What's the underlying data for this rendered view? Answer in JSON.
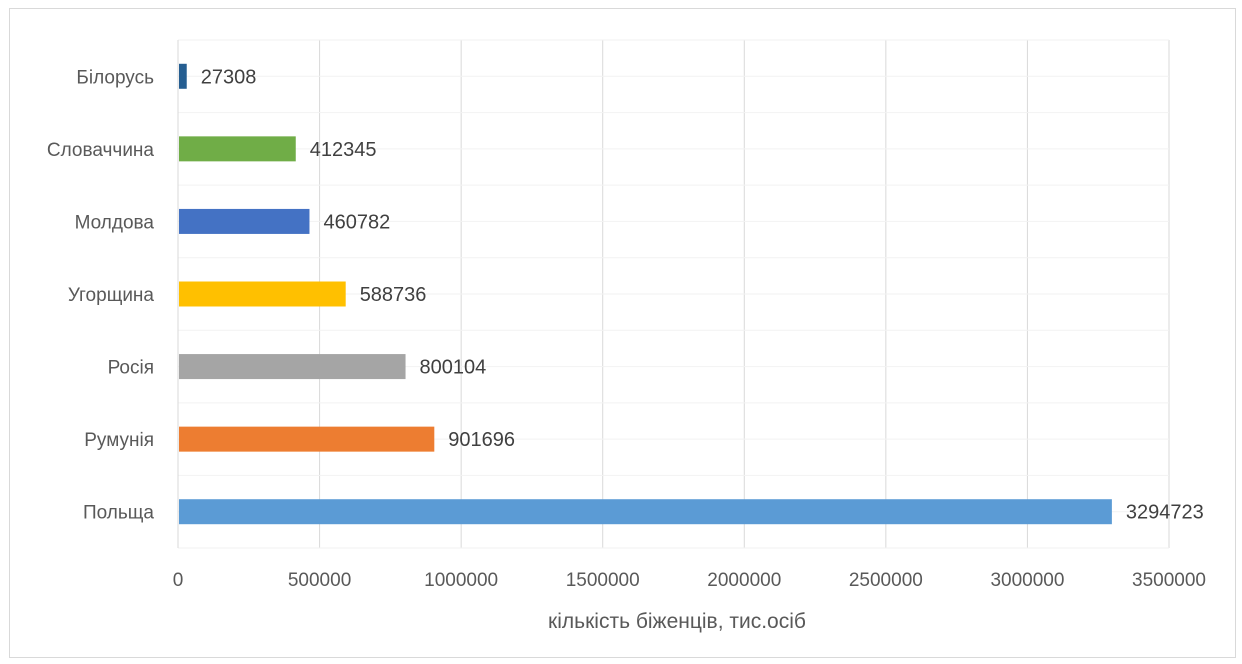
{
  "chart_data": {
    "type": "bar",
    "orientation": "horizontal",
    "categories": [
      "Польща",
      "Румунія",
      "Росія",
      "Угорщина",
      "Молдова",
      "Словаччина",
      "Білорусь"
    ],
    "values": [
      3294723,
      901696,
      800104,
      588736,
      460782,
      412345,
      27308
    ],
    "colors": [
      "#5b9bd5",
      "#ed7d31",
      "#a5a5a5",
      "#ffc000",
      "#4472c4",
      "#70ad47",
      "#255e91"
    ],
    "data_labels": [
      "3294723",
      "901696",
      "800104",
      "588736",
      "460782",
      "412345",
      "27308"
    ],
    "xlabel": "кількість біженців, тис.осіб",
    "ylabel": "",
    "xlim": [
      0,
      3500000
    ],
    "xticks": [
      0,
      500000,
      1000000,
      1500000,
      2000000,
      2500000,
      3000000,
      3500000
    ],
    "xtick_labels": [
      "0",
      "500000",
      "1000000",
      "1500000",
      "2000000",
      "2500000",
      "3000000",
      "3500000"
    ],
    "grid": true,
    "legend": "none"
  }
}
